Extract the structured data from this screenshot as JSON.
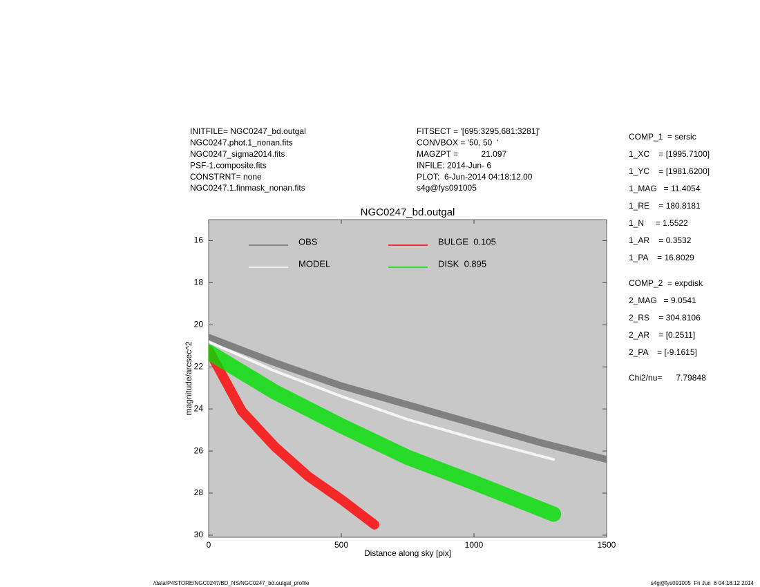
{
  "header": {
    "left": [
      "INITFILE= NGC0247_bd.outgal",
      "NGC0247.phot.1_nonan.fits",
      "NGC0247_sigma2014.fits",
      "PSF-1.composite.fits",
      "CONSTRNT= none",
      "NGC0247.1.finmask_nonan.fits"
    ],
    "middle": [
      "FITSECT = '[695:3295,681:3281]'",
      "CONVBOX = '50, 50  '",
      "MAGZPT =          21.097",
      "INFILE: 2014-Jun- 6",
      "PLOT:  6-Jun-2014 04:18:12.00",
      "s4g@fys091005"
    ]
  },
  "parameters": [
    [
      "COMP_1  = sersic",
      "1_XC    = [1995.7100]",
      "1_YC    = [1981.6200]",
      "1_MAG   = 11.4054",
      "1_RE    = 180.8181",
      "1_N     = 1.5522",
      "1_AR    = 0.3532",
      "1_PA    = 16.8029"
    ],
    [
      "COMP_2  = expdisk",
      "2_MAG   = 9.0541",
      "2_RS    = 304.8106",
      "2_AR    = [0.2511]",
      "2_PA    = [-9.1615]"
    ],
    [
      "Chi2/nu=      7.79848"
    ]
  ],
  "footer": {
    "left": "/data/P4STORE/NGC0247/BD_NS/NGC0247_bd.outgal_profile",
    "right": "s4g@fys091005  Fri Jun  6 04:18:12 2014"
  },
  "chart_data": {
    "type": "line",
    "title": "NGC0247_bd.outgal",
    "xlabel": "Distance along sky [pix]",
    "ylabel": "magnitude/arcsec^2",
    "xlim": [
      0,
      1500
    ],
    "ylim": [
      30.1,
      15
    ],
    "xticks": [
      0,
      500,
      1000,
      1500
    ],
    "yticks": [
      16,
      18,
      20,
      22,
      24,
      26,
      28,
      30
    ],
    "background": "#c8c8c8",
    "series": [
      {
        "name": "OBS",
        "color": "#6e6e6e",
        "x": [
          0,
          250,
          500,
          750,
          1000,
          1250,
          1500
        ],
        "values": [
          20.6,
          21.8,
          22.9,
          23.8,
          24.7,
          25.6,
          26.4
        ]
      },
      {
        "name": "MODEL",
        "color": "#ffffff",
        "x": [
          0,
          250,
          500,
          750,
          1000,
          1300
        ],
        "values": [
          20.8,
          22.2,
          23.4,
          24.5,
          25.4,
          26.4
        ]
      },
      {
        "name": "BULGE  0.105",
        "color": "#ff0000",
        "x": [
          0,
          125,
          250,
          375,
          500,
          625
        ],
        "values": [
          21.2,
          24.1,
          25.8,
          27.2,
          28.3,
          29.5
        ]
      },
      {
        "name": "DISK  0.895",
        "color": "#00e000",
        "x": [
          0,
          250,
          500,
          750,
          1000,
          1300
        ],
        "values": [
          21.3,
          23.2,
          24.8,
          26.3,
          27.5,
          29
        ]
      }
    ]
  }
}
